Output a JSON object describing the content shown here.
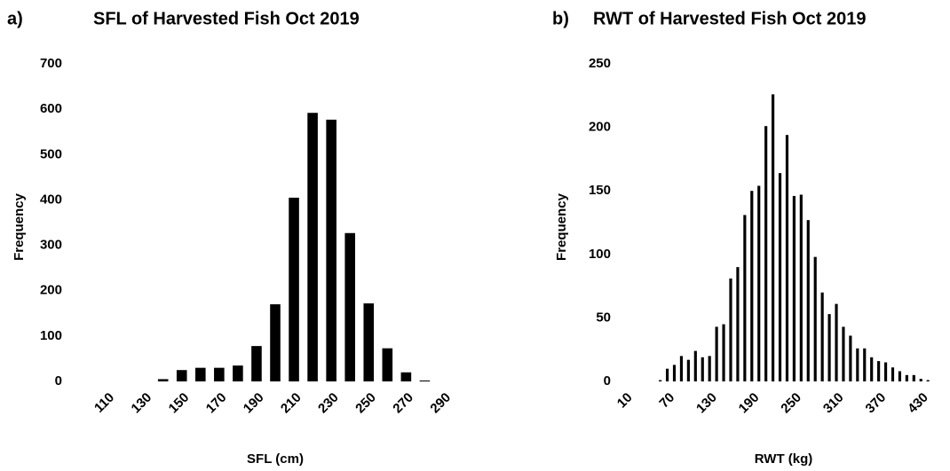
{
  "chart_data": [
    {
      "type": "bar",
      "panel_label": "a)",
      "title": "SFL of Harvested Fish Oct 2019",
      "xlabel": "SFL (cm)",
      "ylabel": "Frequency",
      "categories": [
        "110",
        null,
        "130",
        null,
        "150",
        null,
        "170",
        null,
        "190",
        null,
        "210",
        null,
        "230",
        null,
        "250",
        null,
        "270",
        null,
        "290"
      ],
      "values": [
        0,
        0,
        0,
        5,
        25,
        30,
        30,
        35,
        78,
        170,
        405,
        592,
        577,
        327,
        172,
        73,
        20,
        2,
        0
      ],
      "color": "#000000",
      "ylim": [
        0,
        700
      ],
      "yticks": [
        0,
        100,
        200,
        300,
        400,
        500,
        600,
        700
      ],
      "grid": false
    },
    {
      "type": "bar",
      "panel_label": "b)",
      "title": "RWT of Harvested Fish Oct 2019",
      "xlabel": "RWT (kg)",
      "ylabel": "Frequency",
      "categories": [
        "10",
        null,
        null,
        null,
        null,
        null,
        "70",
        null,
        null,
        null,
        null,
        null,
        "130",
        null,
        null,
        null,
        null,
        null,
        "190",
        null,
        null,
        null,
        null,
        null,
        "250",
        null,
        null,
        null,
        null,
        null,
        "310",
        null,
        null,
        null,
        null,
        null,
        "370",
        null,
        null,
        null,
        null,
        null,
        "430",
        null,
        null,
        null
      ],
      "values": [
        0,
        0,
        0,
        0,
        0,
        1,
        10,
        13,
        20,
        17,
        24,
        19,
        20,
        43,
        45,
        81,
        90,
        131,
        150,
        154,
        201,
        226,
        164,
        194,
        146,
        147,
        127,
        98,
        70,
        53,
        61,
        43,
        36,
        26,
        26,
        19,
        16,
        15,
        11,
        8,
        5,
        5,
        2,
        1,
        0,
        0
      ],
      "color": "#000000",
      "ylim": [
        0,
        250
      ],
      "yticks": [
        0,
        50,
        100,
        150,
        200,
        250
      ],
      "grid": false
    }
  ]
}
